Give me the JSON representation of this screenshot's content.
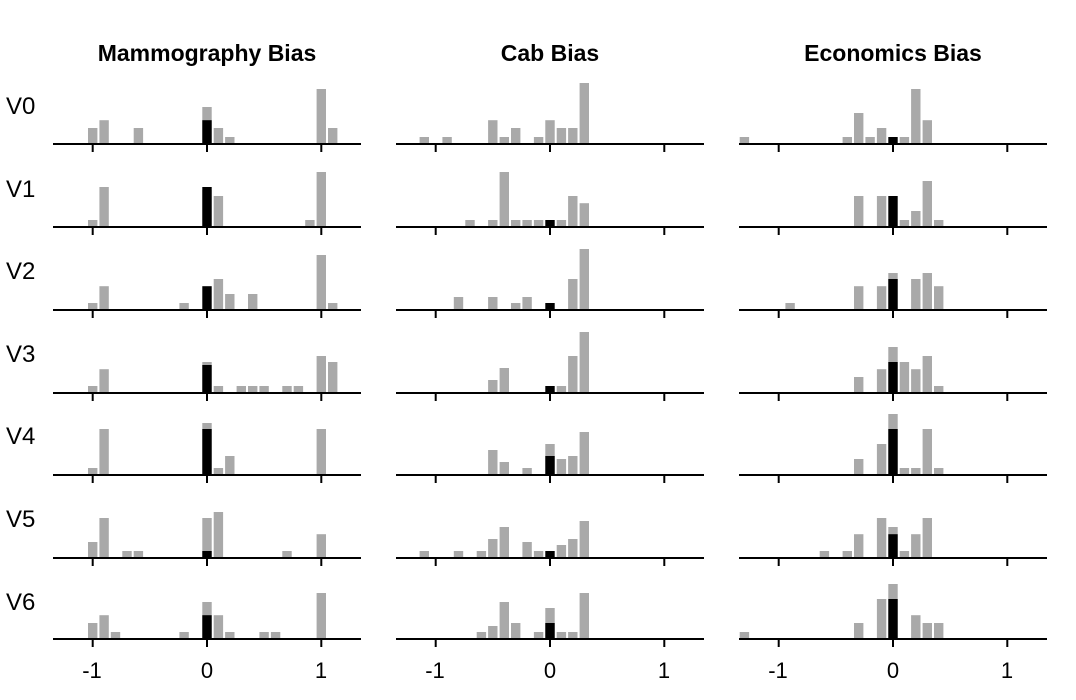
{
  "chart_data": {
    "type": "bar",
    "panels": [
      "Mammography Bias",
      "Cab Bias",
      "Economics Bias"
    ],
    "rows": [
      "V0",
      "V1",
      "V2",
      "V3",
      "V4",
      "V5",
      "V6"
    ],
    "x_ticks": [
      -1,
      0,
      1
    ],
    "x_tick_labels": [
      "-1",
      "0",
      "1"
    ],
    "bin_width": 0.1,
    "colors": {
      "gray": "#a9a9a9",
      "black": "#000000",
      "axis": "#000000"
    },
    "data": [
      [
        {
          "gray": [
            [
              -1,
              0.25
            ],
            [
              -0.9,
              0.38
            ],
            [
              -0.6,
              0.25
            ],
            [
              0,
              0.6
            ],
            [
              0.1,
              0.25
            ],
            [
              0.2,
              0.1
            ],
            [
              1,
              0.9
            ],
            [
              1.1,
              0.25
            ]
          ],
          "black": [
            [
              0,
              0.38
            ]
          ]
        },
        {
          "gray": [
            [
              -1,
              0.1
            ],
            [
              -0.9,
              0.65
            ],
            [
              0,
              0.6
            ],
            [
              0.1,
              0.5
            ],
            [
              0.9,
              0.1
            ],
            [
              1,
              0.9
            ]
          ],
          "black": [
            [
              0,
              0.65
            ]
          ]
        },
        {
          "gray": [
            [
              -1,
              0.1
            ],
            [
              -0.9,
              0.38
            ],
            [
              -0.2,
              0.1
            ],
            [
              0.1,
              0.5
            ],
            [
              0.2,
              0.25
            ],
            [
              0.4,
              0.25
            ],
            [
              1,
              0.9
            ],
            [
              1.1,
              0.1
            ]
          ],
          "black": [
            [
              0,
              0.38
            ]
          ]
        },
        {
          "gray": [
            [
              -1,
              0.1
            ],
            [
              -0.9,
              0.38
            ],
            [
              0,
              0.5
            ],
            [
              0.1,
              0.1
            ],
            [
              0.3,
              0.1
            ],
            [
              0.4,
              0.1
            ],
            [
              0.5,
              0.1
            ],
            [
              0.7,
              0.1
            ],
            [
              0.8,
              0.1
            ],
            [
              1,
              0.6
            ],
            [
              1.1,
              0.5
            ]
          ],
          "black": [
            [
              0,
              0.45
            ]
          ]
        },
        {
          "gray": [
            [
              -1,
              0.1
            ],
            [
              -0.9,
              0.75
            ],
            [
              0,
              0.85
            ],
            [
              0.1,
              0.1
            ],
            [
              0.2,
              0.3
            ],
            [
              1,
              0.75
            ]
          ],
          "black": [
            [
              0,
              0.75
            ]
          ]
        },
        {
          "gray": [
            [
              -1,
              0.25
            ],
            [
              -0.9,
              0.65
            ],
            [
              -0.7,
              0.1
            ],
            [
              -0.6,
              0.1
            ],
            [
              0,
              0.65
            ],
            [
              0.1,
              0.75
            ],
            [
              0.7,
              0.1
            ],
            [
              1,
              0.38
            ]
          ],
          "black": [
            [
              0,
              0.1
            ]
          ]
        },
        {
          "gray": [
            [
              -1,
              0.25
            ],
            [
              -0.9,
              0.38
            ],
            [
              -0.8,
              0.1
            ],
            [
              -0.2,
              0.1
            ],
            [
              0,
              0.6
            ],
            [
              0.1,
              0.38
            ],
            [
              0.2,
              0.1
            ],
            [
              0.5,
              0.1
            ],
            [
              0.6,
              0.1
            ],
            [
              1,
              0.75
            ]
          ],
          "black": [
            [
              0,
              0.38
            ]
          ]
        }
      ],
      [
        {
          "gray": [
            [
              -1.1,
              0.1
            ],
            [
              -0.9,
              0.1
            ],
            [
              -0.5,
              0.38
            ],
            [
              -0.4,
              0.1
            ],
            [
              -0.3,
              0.25
            ],
            [
              -0.1,
              0.1
            ],
            [
              0,
              0.38
            ],
            [
              0.1,
              0.25
            ],
            [
              0.2,
              0.25
            ],
            [
              0.3,
              1.0
            ]
          ],
          "black": []
        },
        {
          "gray": [
            [
              -0.7,
              0.1
            ],
            [
              -0.5,
              0.1
            ],
            [
              -0.4,
              0.9
            ],
            [
              -0.3,
              0.1
            ],
            [
              -0.2,
              0.1
            ],
            [
              -0.1,
              0.1
            ],
            [
              0.1,
              0.1
            ],
            [
              0.2,
              0.5
            ],
            [
              0.3,
              0.38
            ]
          ],
          "black": [
            [
              0,
              0.1
            ]
          ]
        },
        {
          "gray": [
            [
              -0.8,
              0.2
            ],
            [
              -0.5,
              0.2
            ],
            [
              -0.3,
              0.1
            ],
            [
              -0.2,
              0.2
            ],
            [
              0.2,
              0.5
            ],
            [
              0.3,
              1.0
            ]
          ],
          "black": [
            [
              0,
              0.1
            ]
          ]
        },
        {
          "gray": [
            [
              -0.5,
              0.2
            ],
            [
              -0.4,
              0.4
            ],
            [
              0.1,
              0.1
            ],
            [
              0.2,
              0.6
            ],
            [
              0.3,
              1.0
            ]
          ],
          "black": [
            [
              0,
              0.1
            ]
          ]
        },
        {
          "gray": [
            [
              -0.5,
              0.4
            ],
            [
              -0.4,
              0.2
            ],
            [
              -0.2,
              0.1
            ],
            [
              0,
              0.5
            ],
            [
              0.1,
              0.25
            ],
            [
              0.2,
              0.3
            ],
            [
              0.3,
              0.7
            ]
          ],
          "black": [
            [
              0,
              0.3
            ]
          ]
        },
        {
          "gray": [
            [
              -1.1,
              0.1
            ],
            [
              -0.8,
              0.1
            ],
            [
              -0.6,
              0.1
            ],
            [
              -0.5,
              0.3
            ],
            [
              -0.4,
              0.5
            ],
            [
              -0.2,
              0.25
            ],
            [
              -0.1,
              0.1
            ],
            [
              0.1,
              0.2
            ],
            [
              0.2,
              0.3
            ],
            [
              0.3,
              0.6
            ]
          ],
          "black": [
            [
              0,
              0.1
            ]
          ]
        },
        {
          "gray": [
            [
              -0.6,
              0.1
            ],
            [
              -0.5,
              0.2
            ],
            [
              -0.4,
              0.6
            ],
            [
              -0.3,
              0.25
            ],
            [
              -0.1,
              0.1
            ],
            [
              0,
              0.5
            ],
            [
              0.1,
              0.1
            ],
            [
              0.2,
              0.1
            ],
            [
              0.3,
              0.75
            ]
          ],
          "black": [
            [
              0,
              0.25
            ]
          ]
        }
      ],
      [
        {
          "gray": [
            [
              -1.3,
              0.1
            ],
            [
              -0.4,
              0.1
            ],
            [
              -0.3,
              0.5
            ],
            [
              -0.2,
              0.1
            ],
            [
              -0.1,
              0.25
            ],
            [
              0.1,
              0.1
            ],
            [
              0.2,
              0.9
            ],
            [
              0.3,
              0.38
            ]
          ],
          "black": [
            [
              0,
              0.1
            ]
          ]
        },
        {
          "gray": [
            [
              -0.3,
              0.5
            ],
            [
              -0.1,
              0.5
            ],
            [
              0.1,
              0.1
            ],
            [
              0.2,
              0.25
            ],
            [
              0.3,
              0.75
            ],
            [
              0.4,
              0.1
            ]
          ],
          "black": [
            [
              0,
              0.5
            ]
          ]
        },
        {
          "gray": [
            [
              -0.9,
              0.1
            ],
            [
              -0.3,
              0.38
            ],
            [
              -0.1,
              0.38
            ],
            [
              0,
              0.6
            ],
            [
              0.2,
              0.5
            ],
            [
              0.3,
              0.6
            ],
            [
              0.4,
              0.38
            ]
          ],
          "black": [
            [
              0,
              0.5
            ]
          ]
        },
        {
          "gray": [
            [
              -0.3,
              0.25
            ],
            [
              -0.1,
              0.38
            ],
            [
              0,
              0.75
            ],
            [
              0.1,
              0.5
            ],
            [
              0.2,
              0.38
            ],
            [
              0.3,
              0.6
            ],
            [
              0.4,
              0.1
            ]
          ],
          "black": [
            [
              0,
              0.5
            ]
          ]
        },
        {
          "gray": [
            [
              -0.3,
              0.25
            ],
            [
              -0.1,
              0.5
            ],
            [
              0,
              1.0
            ],
            [
              0.1,
              0.1
            ],
            [
              0.2,
              0.1
            ],
            [
              0.3,
              0.75
            ],
            [
              0.4,
              0.1
            ]
          ],
          "black": [
            [
              0,
              0.75
            ]
          ]
        },
        {
          "gray": [
            [
              -0.6,
              0.1
            ],
            [
              -0.4,
              0.1
            ],
            [
              -0.3,
              0.38
            ],
            [
              -0.1,
              0.65
            ],
            [
              0,
              0.5
            ],
            [
              0.1,
              0.1
            ],
            [
              0.2,
              0.38
            ],
            [
              0.3,
              0.65
            ]
          ],
          "black": [
            [
              0,
              0.38
            ]
          ]
        },
        {
          "gray": [
            [
              -1.3,
              0.1
            ],
            [
              -0.3,
              0.25
            ],
            [
              -0.1,
              0.65
            ],
            [
              0,
              0.9
            ],
            [
              0.2,
              0.38
            ],
            [
              0.3,
              0.25
            ],
            [
              0.4,
              0.25
            ]
          ],
          "black": [
            [
              0,
              0.65
            ]
          ]
        }
      ]
    ]
  }
}
